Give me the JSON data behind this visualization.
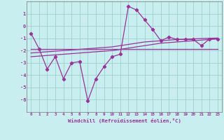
{
  "x": [
    0,
    1,
    2,
    3,
    4,
    5,
    6,
    7,
    8,
    9,
    10,
    11,
    12,
    13,
    14,
    15,
    16,
    17,
    18,
    19,
    20,
    21,
    22,
    23
  ],
  "y_main": [
    -0.6,
    -1.85,
    -3.5,
    -2.5,
    -4.3,
    -3.0,
    -2.9,
    -6.1,
    -4.3,
    -3.3,
    -2.5,
    -2.3,
    1.6,
    1.3,
    0.5,
    -0.3,
    -1.2,
    -0.9,
    -1.1,
    -1.1,
    -1.1,
    -1.6,
    -1.05,
    -1.05
  ],
  "y_smooth1": [
    -1.85,
    -1.85,
    -1.85,
    -1.85,
    -1.85,
    -1.85,
    -1.85,
    -1.85,
    -1.85,
    -1.85,
    -1.85,
    -1.85,
    -1.85,
    -1.85,
    -1.85,
    -1.85,
    -1.85,
    -1.85,
    -1.85,
    -1.85,
    -1.85,
    -1.85,
    -1.85,
    -1.85
  ],
  "y_smooth2": [
    -2.5,
    -2.45,
    -2.4,
    -2.35,
    -2.3,
    -2.25,
    -2.2,
    -2.15,
    -2.1,
    -2.05,
    -2.0,
    -1.9,
    -1.8,
    -1.7,
    -1.6,
    -1.5,
    -1.4,
    -1.35,
    -1.3,
    -1.25,
    -1.2,
    -1.15,
    -1.1,
    -1.05
  ],
  "y_smooth3": [
    -2.2,
    -2.15,
    -2.1,
    -2.05,
    -2.0,
    -1.95,
    -1.9,
    -1.85,
    -1.8,
    -1.75,
    -1.7,
    -1.6,
    -1.5,
    -1.4,
    -1.3,
    -1.25,
    -1.2,
    -1.15,
    -1.1,
    -1.08,
    -1.05,
    -1.02,
    -1.0,
    -0.98
  ],
  "line_color": "#993399",
  "bg_color": "#c8eef0",
  "grid_color": "#9fcfcf",
  "xlabel": "Windchill (Refroidissement éolien,°C)",
  "ylim": [
    -7,
    2
  ],
  "xlim": [
    -0.5,
    23.5
  ],
  "yticks": [
    1,
    0,
    -1,
    -2,
    -3,
    -4,
    -5,
    -6
  ],
  "xticks": [
    0,
    1,
    2,
    3,
    4,
    5,
    6,
    7,
    8,
    9,
    10,
    11,
    12,
    13,
    14,
    15,
    16,
    17,
    18,
    19,
    20,
    21,
    22,
    23
  ]
}
